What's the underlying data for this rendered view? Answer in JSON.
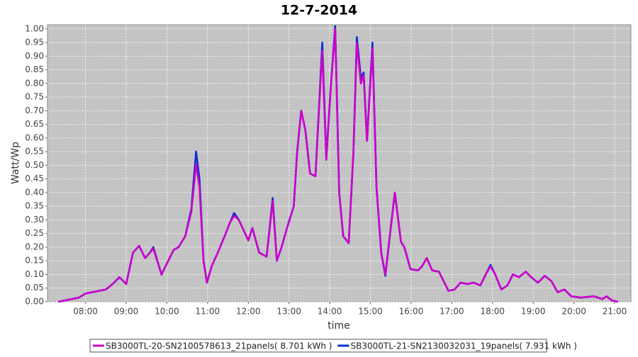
{
  "chart_data": {
    "type": "line",
    "title": "12-7-2014",
    "x_label": "time",
    "y_label": "Watt/Wp",
    "x": [
      440,
      450,
      460,
      470,
      480,
      490,
      500,
      510,
      520,
      530,
      540,
      550,
      559,
      568,
      575,
      580,
      592,
      600,
      610,
      617,
      627,
      636,
      643,
      648,
      654,
      659,
      666,
      675,
      685,
      693,
      699,
      706,
      720,
      726,
      736,
      747,
      756,
      762,
      769,
      777,
      787,
      792,
      798,
      804,
      811,
      819,
      824,
      829,
      835,
      842,
      848,
      854,
      860,
      868,
      875,
      880,
      886,
      890,
      895,
      903,
      909,
      916,
      922,
      929,
      936,
      945,
      950,
      959,
      970,
      976,
      983,
      991,
      1001,
      1015,
      1024,
      1033,
      1043,
      1052,
      1062,
      1070,
      1077,
      1084,
      1093,
      1102,
      1110,
      1119,
      1129,
      1137,
      1147,
      1157,
      1167,
      1176,
      1186,
      1196,
      1210,
      1229,
      1242,
      1248,
      1256,
      1265
    ],
    "series": [
      {
        "name": "SB3000TL-21-SN2130032031_19panels( 7.931 kWh )",
        "color": "#0a2fd0",
        "values": [
          0,
          0.005,
          0.01,
          0.015,
          0.03,
          0.035,
          0.04,
          0.045,
          0.065,
          0.09,
          0.065,
          0.18,
          0.205,
          0.16,
          0.18,
          0.2,
          0.1,
          0.14,
          0.19,
          0.2,
          0.24,
          0.34,
          0.55,
          0.45,
          0.15,
          0.07,
          0.13,
          0.18,
          0.24,
          0.29,
          0.325,
          0.3,
          0.225,
          0.27,
          0.18,
          0.165,
          0.38,
          0.15,
          0.2,
          0.27,
          0.35,
          0.55,
          0.7,
          0.63,
          0.47,
          0.46,
          0.7,
          0.95,
          0.53,
          0.8,
          1.01,
          0.4,
          0.24,
          0.215,
          0.55,
          0.97,
          0.82,
          0.84,
          0.59,
          0.95,
          0.42,
          0.18,
          0.095,
          0.25,
          0.4,
          0.22,
          0.2,
          0.12,
          0.115,
          0.13,
          0.16,
          0.115,
          0.11,
          0.04,
          0.045,
          0.07,
          0.065,
          0.07,
          0.06,
          0.1,
          0.135,
          0.1,
          0.045,
          0.06,
          0.1,
          0.09,
          0.11,
          0.09,
          0.07,
          0.095,
          0.075,
          0.035,
          0.045,
          0.02,
          0.015,
          0.02,
          0.01,
          0.02,
          0.005,
          0
        ]
      },
      {
        "name": "SB3000TL-20-SN2100578613_21panels( 8.701 kWh )",
        "color": "#cc00cc",
        "values": [
          0,
          0.005,
          0.01,
          0.015,
          0.03,
          0.035,
          0.04,
          0.045,
          0.065,
          0.09,
          0.065,
          0.18,
          0.205,
          0.16,
          0.18,
          0.195,
          0.1,
          0.14,
          0.19,
          0.2,
          0.24,
          0.33,
          0.505,
          0.42,
          0.15,
          0.07,
          0.13,
          0.18,
          0.24,
          0.29,
          0.315,
          0.3,
          0.225,
          0.27,
          0.18,
          0.165,
          0.37,
          0.15,
          0.2,
          0.27,
          0.35,
          0.55,
          0.7,
          0.63,
          0.47,
          0.46,
          0.7,
          0.92,
          0.52,
          0.8,
          1,
          0.4,
          0.24,
          0.215,
          0.55,
          0.95,
          0.8,
          0.83,
          0.59,
          0.93,
          0.42,
          0.18,
          0.1,
          0.25,
          0.4,
          0.22,
          0.2,
          0.12,
          0.115,
          0.13,
          0.16,
          0.115,
          0.11,
          0.04,
          0.045,
          0.07,
          0.065,
          0.07,
          0.06,
          0.1,
          0.13,
          0.1,
          0.045,
          0.06,
          0.1,
          0.09,
          0.11,
          0.09,
          0.07,
          0.095,
          0.075,
          0.035,
          0.045,
          0.02,
          0.015,
          0.02,
          0.01,
          0.02,
          0.005,
          0
        ]
      }
    ],
    "legend_order": [
      1,
      0
    ],
    "xlim": [
      424,
      1284
    ],
    "xticks": [
      {
        "value": 480,
        "label": "08:00"
      },
      {
        "value": 540,
        "label": "09:00"
      },
      {
        "value": 600,
        "label": "10:00"
      },
      {
        "value": 660,
        "label": "11:00"
      },
      {
        "value": 720,
        "label": "12:00"
      },
      {
        "value": 780,
        "label": "13:00"
      },
      {
        "value": 840,
        "label": "14:00"
      },
      {
        "value": 900,
        "label": "15:00"
      },
      {
        "value": 960,
        "label": "16:00"
      },
      {
        "value": 1020,
        "label": "17:00"
      },
      {
        "value": 1080,
        "label": "18:00"
      },
      {
        "value": 1140,
        "label": "19:00"
      },
      {
        "value": 1200,
        "label": "20:00"
      },
      {
        "value": 1260,
        "label": "21:00"
      }
    ],
    "ylim": [
      0,
      1.015
    ],
    "yticks": [
      {
        "value": 0,
        "label": "0.00"
      },
      0.05,
      {
        "value": 0.1,
        "label": "0.10"
      },
      0.15,
      {
        "value": 0.2,
        "label": "0.20"
      },
      0.25,
      {
        "value": 0.3,
        "label": "0.30"
      },
      0.35,
      {
        "value": 0.4,
        "label": "0.40"
      },
      0.45,
      {
        "value": 0.5,
        "label": "0.50"
      },
      0.55,
      {
        "value": 0.6,
        "label": "0.60"
      },
      0.65,
      {
        "value": 0.7,
        "label": "0.70"
      },
      0.75,
      {
        "value": 0.8,
        "label": "0.80"
      },
      0.85,
      {
        "value": 0.9,
        "label": "0.90"
      },
      0.95,
      {
        "value": 1,
        "label": "1.00"
      }
    ],
    "grid": true
  }
}
